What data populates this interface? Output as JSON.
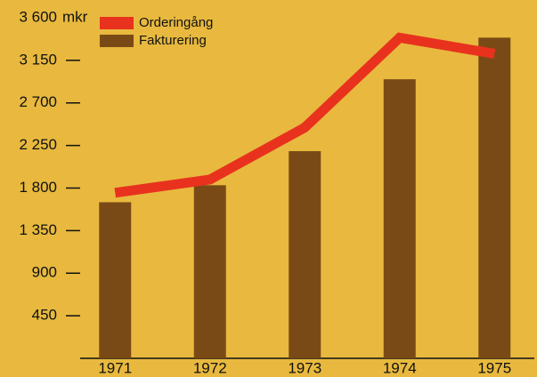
{
  "chart_data": {
    "type": "bar-line",
    "y_label": "mkr",
    "categories": [
      "1971",
      "1972",
      "1973",
      "1974",
      "1975"
    ],
    "series": [
      {
        "name": "Orderingång",
        "type": "line",
        "color": "#e8321e",
        "values": [
          1750,
          1890,
          2440,
          3390,
          3220
        ]
      },
      {
        "name": "Fakturering",
        "type": "bar",
        "color": "#7a4a16",
        "values": [
          1650,
          1830,
          2190,
          2950,
          3390
        ]
      }
    ],
    "ylim": [
      0,
      3600
    ],
    "yticks": [
      450,
      900,
      {
        "value": 1350,
        "label": "1 350"
      },
      {
        "value": 1800,
        "label": "1 800"
      },
      {
        "value": 2250,
        "label": "2 250"
      },
      {
        "value": 2700,
        "label": "2 700"
      },
      {
        "value": 3150,
        "label": "3 150"
      },
      {
        "value": 3600,
        "label": "3 600"
      }
    ],
    "legend": "top-left",
    "background": "#e8b93e"
  }
}
